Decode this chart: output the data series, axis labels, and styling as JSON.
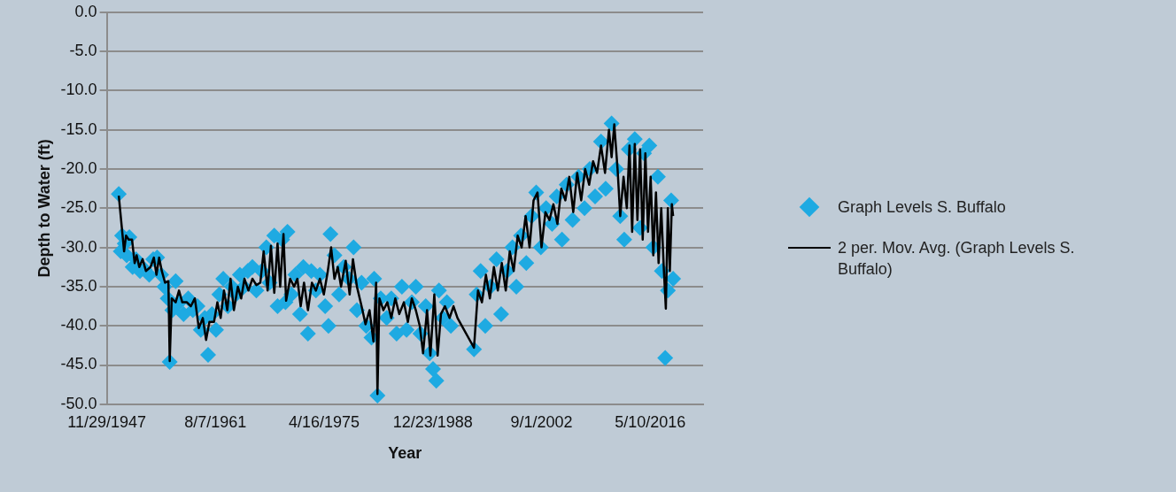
{
  "chart_data": {
    "type": "scatter",
    "xlabel": "Year",
    "ylabel": "Depth to Water (ft)",
    "xlim": [
      "1947-11-29",
      "2023-01-10"
    ],
    "xticks": [
      {
        "value": "1947-11-29",
        "label": "11/29/1947"
      },
      {
        "value": "1961-08-07",
        "label": "8/7/1961"
      },
      {
        "value": "1975-04-16",
        "label": "4/16/1975"
      },
      {
        "value": "1988-12-23",
        "label": "12/23/1988"
      },
      {
        "value": "2002-09-01",
        "label": "9/1/2002"
      },
      {
        "value": "2016-05-10",
        "label": "5/10/2016"
      }
    ],
    "ylim": [
      -50,
      0
    ],
    "yticks": [
      {
        "value": 0,
        "label": "0.0"
      },
      {
        "value": -5,
        "label": "-5.0"
      },
      {
        "value": -10,
        "label": "-10.0"
      },
      {
        "value": -15,
        "label": "-15.0"
      },
      {
        "value": -20,
        "label": "-20.0"
      },
      {
        "value": -25,
        "label": "-25.0"
      },
      {
        "value": -30,
        "label": "-30.0"
      },
      {
        "value": -35,
        "label": "-35.0"
      },
      {
        "value": -40,
        "label": "-40.0"
      },
      {
        "value": -45,
        "label": "-45.0"
      },
      {
        "value": -50,
        "label": "-50.0"
      }
    ],
    "grid": "y",
    "legend": "right",
    "series": [
      {
        "name": "Graph Levels S. Buffalo",
        "type": "scatter",
        "marker": "diamond",
        "color": "#1eaae2",
        "x": [
          "1949-06",
          "1949-09",
          "1949-11",
          "1950-03",
          "1950-06",
          "1950-10",
          "1951-03",
          "1951-08",
          "1952-02",
          "1952-09",
          "1953-04",
          "1953-10",
          "1954-04",
          "1954-10",
          "1955-03",
          "1955-08",
          "1955-11",
          "1956-03",
          "1956-08",
          "1957-02",
          "1957-08",
          "1958-03",
          "1958-10",
          "1959-05",
          "1959-10",
          "1960-04",
          "1960-09",
          "1961-03",
          "1961-09",
          "1962-02",
          "1962-08",
          "1963-03",
          "1963-09",
          "1964-03",
          "1964-09",
          "1965-03",
          "1965-09",
          "1966-04",
          "1966-10",
          "1967-06",
          "1968-01",
          "1968-06",
          "1969-01",
          "1969-06",
          "1970-01",
          "1970-06",
          "1970-09",
          "1971-03",
          "1971-09",
          "1972-04",
          "1972-09",
          "1973-04",
          "1973-09",
          "1974-04",
          "1974-10",
          "1975-06",
          "1975-11",
          "1976-02",
          "1976-08",
          "1977-03",
          "1977-10",
          "1978-06",
          "1979-01",
          "1979-06",
          "1980-01",
          "1980-08",
          "1981-04",
          "1981-08",
          "1982-01",
          "1982-06",
          "1983-03",
          "1983-10",
          "1984-06",
          "1985-02",
          "1985-09",
          "1986-05",
          "1986-11",
          "1987-06",
          "1988-02",
          "1988-08",
          "1989-01",
          "1989-06",
          "1989-10",
          "1990-04",
          "1990-10",
          "1991-04",
          "1994-03",
          "1994-07",
          "1995-01",
          "1995-08",
          "1996-04",
          "1997-01",
          "1997-08",
          "1998-05",
          "1999-01",
          "1999-07",
          "2000-02",
          "2000-10",
          "2001-06",
          "2002-01",
          "2002-08",
          "2003-04",
          "2004-01",
          "2004-08",
          "2005-04",
          "2005-11",
          "2006-08",
          "2007-05",
          "2008-02",
          "2008-10",
          "2009-06",
          "2010-03",
          "2010-10",
          "2011-07",
          "2012-02",
          "2012-08",
          "2013-02",
          "2013-09",
          "2014-06",
          "2015-02",
          "2015-08",
          "2016-04",
          "2016-10",
          "2017-05",
          "2017-11",
          "2018-04",
          "2018-08",
          "2019-01",
          "2019-04"
        ],
        "values": [
          -23.2,
          -30.5,
          -28.5,
          -29.5,
          -31.0,
          -28.7,
          -32.5,
          -31.5,
          -33.0,
          -32.8,
          -33.5,
          -31.5,
          -31.3,
          -33.5,
          -35.0,
          -36.5,
          -44.6,
          -38.0,
          -34.3,
          -37.0,
          -38.5,
          -36.5,
          -38.0,
          -37.5,
          -40.5,
          -39.0,
          -43.7,
          -38.5,
          -40.5,
          -36.0,
          -34.0,
          -37.5,
          -35.0,
          -36.0,
          -33.5,
          -35.0,
          -33.0,
          -32.5,
          -35.5,
          -33.0,
          -30.0,
          -34.5,
          -28.5,
          -37.5,
          -29.0,
          -37.0,
          -28.0,
          -36.0,
          -33.5,
          -38.5,
          -32.5,
          -41.0,
          -33.0,
          -35.5,
          -33.5,
          -37.5,
          -40.0,
          -28.3,
          -31.0,
          -36.0,
          -32.5,
          -34.0,
          -30.0,
          -38.0,
          -34.5,
          -40.0,
          -41.5,
          -34.0,
          -48.9,
          -36.5,
          -39.0,
          -36.5,
          -41.0,
          -35.0,
          -40.5,
          -37.0,
          -35.0,
          -41.0,
          -37.5,
          -43.5,
          -45.5,
          -47.0,
          -35.5,
          -39.0,
          -37.0,
          -40.0,
          -43.0,
          -36.0,
          -33.0,
          -40.0,
          -35.0,
          -31.5,
          -38.5,
          -33.0,
          -30.0,
          -35.0,
          -28.5,
          -32.0,
          -26.0,
          -23.0,
          -30.0,
          -25.0,
          -27.0,
          -23.5,
          -29.0,
          -22.0,
          -26.5,
          -21.0,
          -25.0,
          -20.0,
          -23.5,
          -16.5,
          -22.5,
          -14.2,
          -20.0,
          -26.0,
          -29.0,
          -17.5,
          -16.2,
          -27.5,
          -18.0,
          -17.0,
          -30.0,
          -21.0,
          -33.0,
          -44.1,
          -35.5,
          -24.0,
          -34.0
        ]
      },
      {
        "name": "2 per. Mov. Avg. (Graph Levels S. Buffalo)",
        "type": "line",
        "marker": "none",
        "line_style": "solid",
        "color": "#000000",
        "x": [
          "1949-06",
          "1950-02",
          "1950-05",
          "1950-09",
          "1951-02",
          "1951-06",
          "1951-09",
          "1952-01",
          "1952-06",
          "1952-11",
          "1953-06",
          "1953-11",
          "1954-03",
          "1954-07",
          "1954-11",
          "1955-04",
          "1955-09",
          "1955-11",
          "1956-02",
          "1956-08",
          "1957-01",
          "1957-06",
          "1958-01",
          "1958-07",
          "1959-01",
          "1959-07",
          "1960-01",
          "1960-06",
          "1960-11",
          "1961-06",
          "1961-11",
          "1962-04",
          "1962-09",
          "1963-02",
          "1963-07",
          "1963-12",
          "1964-06",
          "1964-11",
          "1965-04",
          "1965-10",
          "1966-04",
          "1966-10",
          "1967-04",
          "1967-09",
          "1968-03",
          "1968-08",
          "1969-01",
          "1969-06",
          "1969-10",
          "1970-03",
          "1970-07",
          "1971-01",
          "1971-07",
          "1971-12",
          "1972-05",
          "1972-10",
          "1973-04",
          "1973-10",
          "1974-04",
          "1974-10",
          "1975-04",
          "1975-10",
          "1976-03",
          "1976-08",
          "1977-01",
          "1977-06",
          "1978-01",
          "1978-07",
          "1978-12",
          "1979-06",
          "1980-01",
          "1980-07",
          "1981-01",
          "1981-07",
          "1981-11",
          "1982-01",
          "1982-04",
          "1982-10",
          "1983-04",
          "1983-10",
          "1984-04",
          "1984-10",
          "1985-05",
          "1985-11",
          "1986-05",
          "1986-11",
          "1987-05",
          "1987-10",
          "1988-04",
          "1988-09",
          "1989-03",
          "1989-08",
          "1990-01",
          "1990-07",
          "1991-02",
          "1991-08",
          "1992-02",
          "1994-03",
          "1994-09",
          "1995-03",
          "1995-09",
          "1996-03",
          "1996-09",
          "1997-03",
          "1997-09",
          "1998-03",
          "1998-09",
          "1999-03",
          "1999-09",
          "2000-03",
          "2000-09",
          "2001-03",
          "2001-09",
          "2002-03",
          "2002-09",
          "2003-03",
          "2003-09",
          "2004-03",
          "2004-09",
          "2005-03",
          "2005-09",
          "2006-03",
          "2006-09",
          "2007-03",
          "2007-09",
          "2008-03",
          "2008-09",
          "2009-03",
          "2009-09",
          "2010-03",
          "2010-09",
          "2011-03",
          "2011-07",
          "2011-11",
          "2012-04",
          "2012-08",
          "2013-01",
          "2013-06",
          "2013-10",
          "2014-02",
          "2014-06",
          "2014-10",
          "2015-02",
          "2015-06",
          "2015-10",
          "2016-02",
          "2016-06",
          "2016-10",
          "2017-02",
          "2017-06",
          "2017-10",
          "2018-02",
          "2018-05",
          "2018-08",
          "2018-11",
          "2019-02",
          "2019-04"
        ],
        "values": [
          -23.4,
          -30.5,
          -28.5,
          -29.0,
          -29.0,
          -32.0,
          -31.0,
          -32.5,
          -31.5,
          -33.0,
          -32.5,
          -31.3,
          -33.5,
          -31.3,
          -33.0,
          -34.5,
          -34.3,
          -44.5,
          -36.5,
          -37.0,
          -35.5,
          -37.0,
          -37.0,
          -37.5,
          -36.5,
          -40.3,
          -39.0,
          -41.8,
          -39.5,
          -39.5,
          -37.0,
          -39.0,
          -35.5,
          -38.0,
          -34.0,
          -38.0,
          -35.0,
          -36.5,
          -34.0,
          -35.5,
          -34.0,
          -34.8,
          -34.5,
          -30.5,
          -35.5,
          -29.8,
          -35.8,
          -29.5,
          -35.0,
          -28.3,
          -36.8,
          -34.0,
          -35.0,
          -34.0,
          -37.5,
          -34.5,
          -38.0,
          -34.5,
          -35.5,
          -34.0,
          -36.0,
          -33.0,
          -30.0,
          -34.0,
          -32.5,
          -35.0,
          -31.7,
          -36.0,
          -31.5,
          -35.0,
          -37.5,
          -39.8,
          -38.0,
          -42.0,
          -34.5,
          -48.7,
          -36.5,
          -38.0,
          -37.0,
          -39.0,
          -36.5,
          -38.5,
          -37.0,
          -39.5,
          -36.5,
          -38.0,
          -40.0,
          -43.5,
          -38.0,
          -43.8,
          -36.0,
          -43.8,
          -38.5,
          -37.5,
          -39.0,
          -37.5,
          -39.0,
          -42.8,
          -35.5,
          -37.0,
          -33.5,
          -36.5,
          -32.5,
          -35.5,
          -32.0,
          -35.5,
          -30.5,
          -33.0,
          -28.5,
          -30.0,
          -26.0,
          -30.0,
          -24.0,
          -23.0,
          -30.0,
          -25.5,
          -26.5,
          -24.5,
          -27.0,
          -22.5,
          -24.0,
          -21.0,
          -25.5,
          -20.5,
          -24.0,
          -20.0,
          -22.0,
          -19.0,
          -20.5,
          -17.0,
          -20.5,
          -15.0,
          -18.5,
          -14.3,
          -20.0,
          -26.0,
          -21.0,
          -25.0,
          -17.0,
          -28.0,
          -16.8,
          -26.5,
          -17.5,
          -29.0,
          -18.0,
          -28.0,
          -21.0,
          -31.0,
          -23.0,
          -32.0,
          -25.0,
          -33.0,
          -37.8,
          -25.0,
          -33.0,
          -24.5,
          -26.0
        ]
      }
    ]
  }
}
